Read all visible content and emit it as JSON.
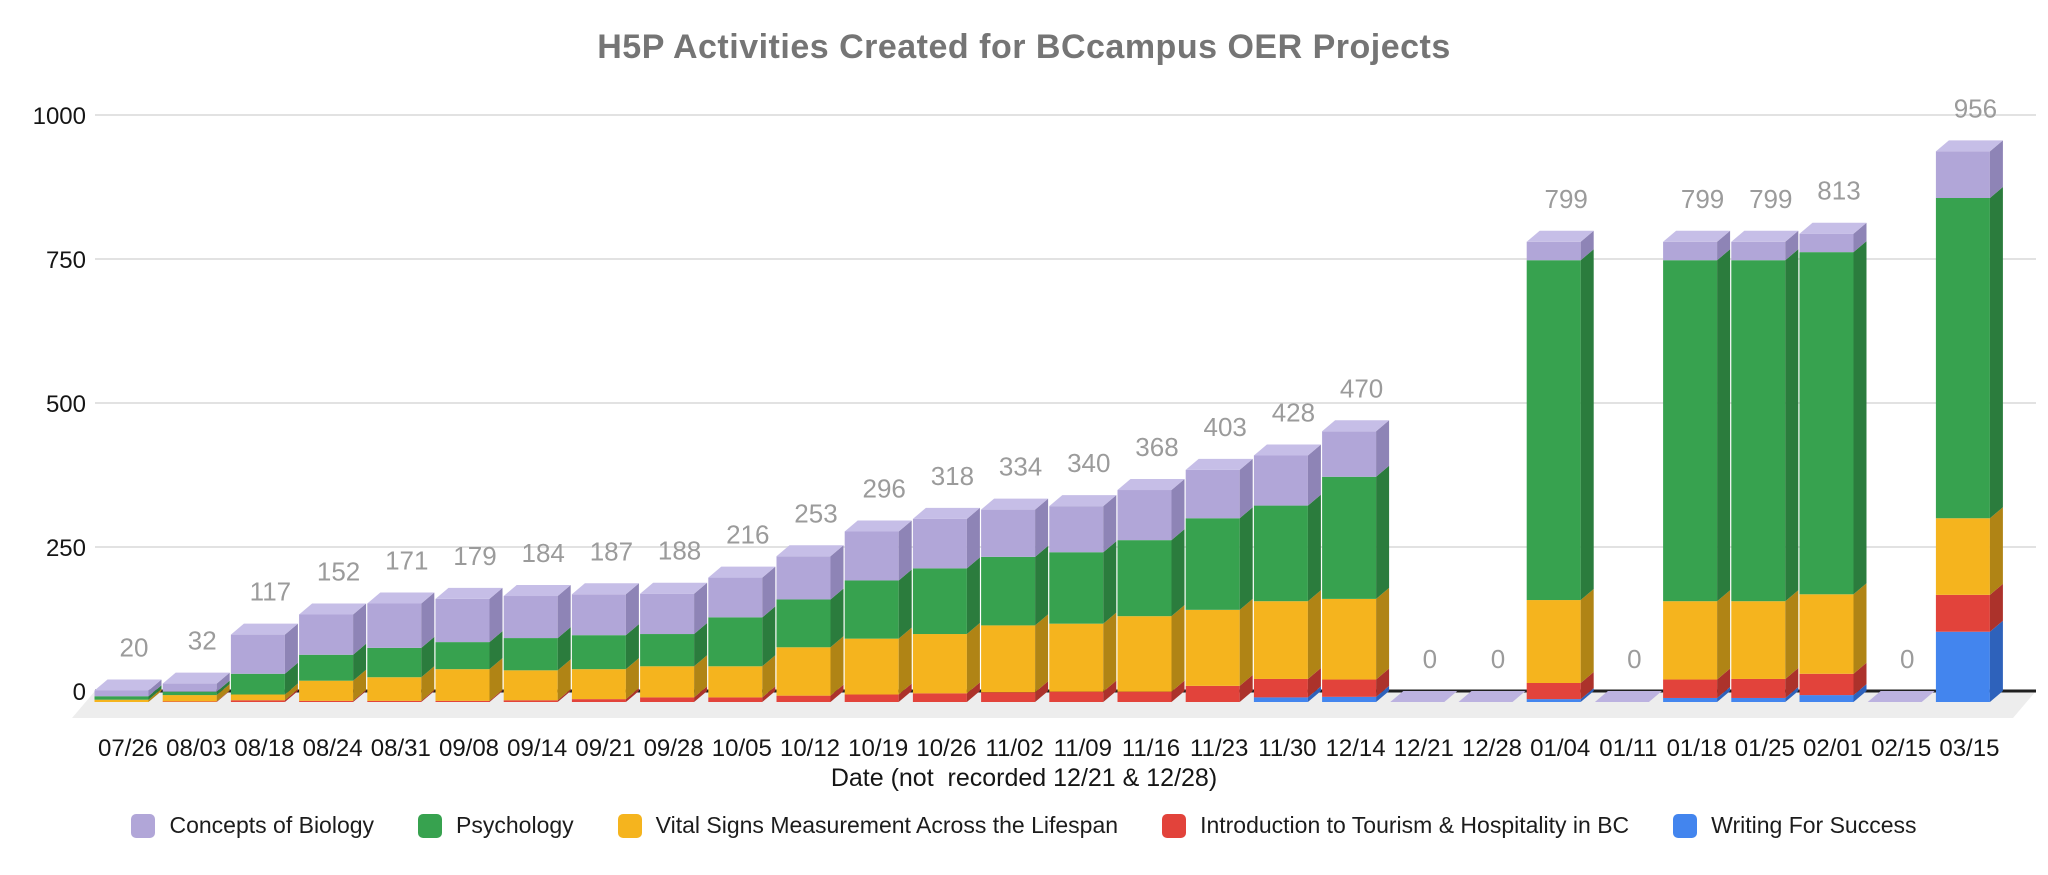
{
  "title": "H5P Activities Created for BCcampus OER Projects",
  "x_axis": {
    "title": "Date (not  recorded 12/21 & 12/28)"
  },
  "y_axis": {
    "ticks": [
      0,
      250,
      500,
      750,
      1000
    ],
    "max": 1000
  },
  "value_label_color": "#9b9b9b",
  "zero_tile_color": "#bcb2e0",
  "legend": {
    "items": [
      {
        "label": "Concepts of Biology"
      },
      {
        "label": "Psychology"
      },
      {
        "label": "Vital Signs Measurement Across the Lifespan"
      },
      {
        "label": "Introduction to Tourism & Hospitality in BC"
      },
      {
        "label": "Writing For Success"
      }
    ]
  },
  "chart_data": {
    "type": "bar",
    "stacked": true,
    "projection": "3d",
    "title": "H5P Activities Created for BCcampus OER Projects",
    "xlabel": "Date (not  recorded 12/21 & 12/28)",
    "ylabel": "",
    "ylim": [
      0,
      1000
    ],
    "grid": true,
    "legend_position": "bottom",
    "stack_order_bottom_to_top": [
      "Writing For Success",
      "Introduction to Tourism & Hospitality in BC",
      "Vital Signs Measurement Across the Lifespan",
      "Psychology",
      "Concepts of Biology"
    ],
    "categories": [
      "07/26",
      "08/03",
      "08/18",
      "08/24",
      "08/31",
      "09/08",
      "09/14",
      "09/21",
      "09/28",
      "10/05",
      "10/12",
      "10/19",
      "10/26",
      "11/02",
      "11/09",
      "11/16",
      "11/23",
      "11/30",
      "12/14",
      "12/21",
      "12/28",
      "01/04",
      "01/11",
      "01/18",
      "01/25",
      "02/01",
      "02/15",
      "03/15"
    ],
    "totals": [
      20,
      32,
      117,
      152,
      171,
      179,
      184,
      187,
      188,
      216,
      253,
      296,
      318,
      334,
      340,
      368,
      403,
      428,
      470,
      0,
      0,
      799,
      0,
      799,
      799,
      813,
      0,
      956
    ],
    "series": [
      {
        "name": "Concepts of Biology",
        "color": {
          "front": "#b1a6d8",
          "top": "#c6bee7",
          "side": "#8e84b6"
        },
        "values": [
          10,
          14,
          68,
          70,
          77,
          75,
          73,
          71,
          70,
          69,
          75,
          85,
          86,
          82,
          80,
          87,
          84,
          87,
          79,
          0,
          0,
          32,
          0,
          32,
          32,
          32,
          0,
          81
        ]
      },
      {
        "name": "Psychology",
        "color": {
          "front": "#37a24f",
          "top": "#6cba7f",
          "side": "#2b7c3d"
        },
        "values": [
          6,
          6,
          36,
          45,
          51,
          47,
          56,
          59,
          56,
          85,
          83,
          101,
          114,
          119,
          124,
          132,
          159,
          166,
          212,
          0,
          0,
          590,
          0,
          592,
          592,
          594,
          0,
          556
        ]
      },
      {
        "name": "Vital Signs Measurement Across the Lifespan",
        "color": {
          "front": "#f5b41e",
          "top": "#f8cd66",
          "side": "#b08415"
        },
        "values": [
          4,
          11,
          10,
          35,
          41,
          55,
          52,
          52,
          54,
          54,
          84,
          97,
          103,
          116,
          118,
          131,
          132,
          135,
          140,
          0,
          0,
          144,
          0,
          136,
          135,
          138,
          0,
          133
        ]
      },
      {
        "name": "Introduction to Tourism & Hospitality in BC",
        "color": {
          "front": "#e2433b",
          "top": "#eb827b",
          "side": "#ac322b"
        },
        "values": [
          0,
          1,
          3,
          2,
          2,
          2,
          3,
          5,
          8,
          8,
          11,
          13,
          15,
          17,
          18,
          18,
          28,
          32,
          30,
          0,
          0,
          28,
          0,
          32,
          33,
          37,
          0,
          64
        ]
      },
      {
        "name": "Writing For Success",
        "color": {
          "front": "#4385ee",
          "top": "#7ea8f3",
          "side": "#2e62bb"
        },
        "values": [
          0,
          0,
          0,
          0,
          0,
          0,
          0,
          0,
          0,
          0,
          0,
          0,
          0,
          0,
          0,
          0,
          0,
          8,
          9,
          0,
          0,
          5,
          0,
          7,
          7,
          12,
          0,
          122
        ]
      }
    ]
  }
}
